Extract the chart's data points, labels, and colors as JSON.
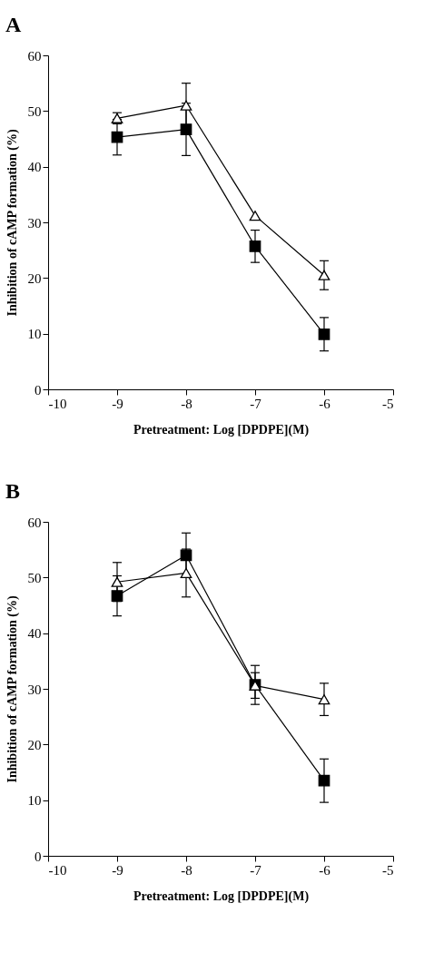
{
  "chart_data": [
    {
      "type": "line",
      "title": "A",
      "xlabel": "Pretreatment: Log [DPDPE](M)",
      "ylabel": "Inhibition of cAMP formation (%)",
      "x": [
        -9,
        -8,
        -7,
        -6
      ],
      "xlim": [
        -10,
        -5
      ],
      "xticks": [
        -10,
        -9,
        -8,
        -7,
        -6,
        -5
      ],
      "ylim": [
        0,
        60
      ],
      "yticks": [
        0,
        10,
        20,
        30,
        40,
        50,
        60
      ],
      "grid": false,
      "series": [
        {
          "color": "#000000",
          "marker": "square",
          "values": [
            45.3,
            46.7,
            25.7,
            9.9
          ],
          "errors": [
            3.2,
            4.7,
            2.9,
            3.0
          ]
        },
        {
          "color": "#000000",
          "marker": "triangle",
          "values": [
            48.7,
            51.0,
            31.2,
            20.5
          ],
          "errors": [
            1.0,
            4.0,
            null,
            2.6
          ]
        }
      ]
    },
    {
      "type": "line",
      "title": "B",
      "xlabel": "Pretreatment: Log [DPDPE](M)",
      "ylabel": "Inhibition of cAMP formation (%)",
      "x": [
        -9,
        -8,
        -7,
        -6
      ],
      "xlim": [
        -10,
        -5
      ],
      "xticks": [
        -10,
        -9,
        -8,
        -7,
        -6,
        -5
      ],
      "ylim": [
        0,
        60
      ],
      "yticks": [
        0,
        10,
        20,
        30,
        40,
        50,
        60
      ],
      "grid": false,
      "series": [
        {
          "color": "#000000",
          "marker": "square",
          "values": [
            46.7,
            54.0,
            30.7,
            13.5
          ],
          "errors": [
            3.6,
            4.0,
            3.5,
            3.9
          ]
        },
        {
          "color": "#000000",
          "marker": "triangle",
          "values": [
            49.2,
            50.8,
            30.6,
            28.1
          ],
          "errors": [
            3.5,
            4.3,
            2.3,
            2.9
          ]
        }
      ]
    }
  ]
}
